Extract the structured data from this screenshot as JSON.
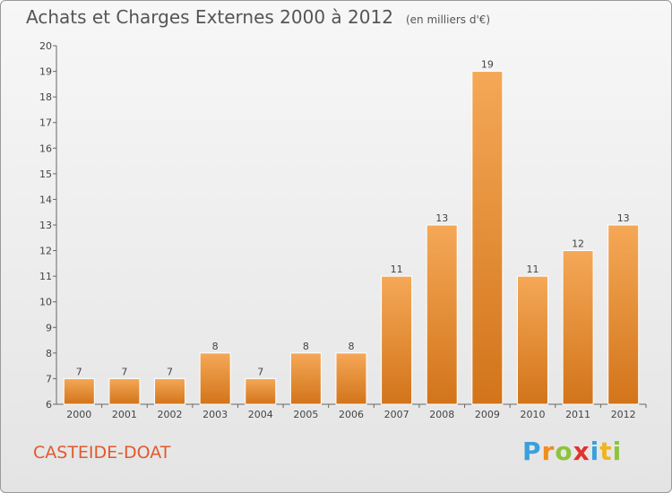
{
  "chart_data": {
    "type": "bar",
    "title": "Achats et Charges Externes 2000 à 2012",
    "subtitle": "(en milliers d'€)",
    "categories": [
      "2000",
      "2001",
      "2002",
      "2003",
      "2004",
      "2005",
      "2006",
      "2007",
      "2008",
      "2009",
      "2010",
      "2011",
      "2012"
    ],
    "values": [
      7,
      7,
      7,
      8,
      7,
      8,
      8,
      11,
      13,
      19,
      11,
      12,
      13
    ],
    "ylim": [
      6,
      20
    ],
    "yticks": [
      6,
      7,
      8,
      9,
      10,
      11,
      12,
      13,
      14,
      15,
      16,
      17,
      18,
      19,
      20
    ],
    "grid": false,
    "bar_color_top": "#f5a857",
    "bar_color_bottom": "#d2741a"
  },
  "footer": {
    "commune": "CASTEIDE-DOAT",
    "logo": [
      "P",
      "r",
      "o",
      "x",
      "i",
      "t",
      "i"
    ]
  }
}
